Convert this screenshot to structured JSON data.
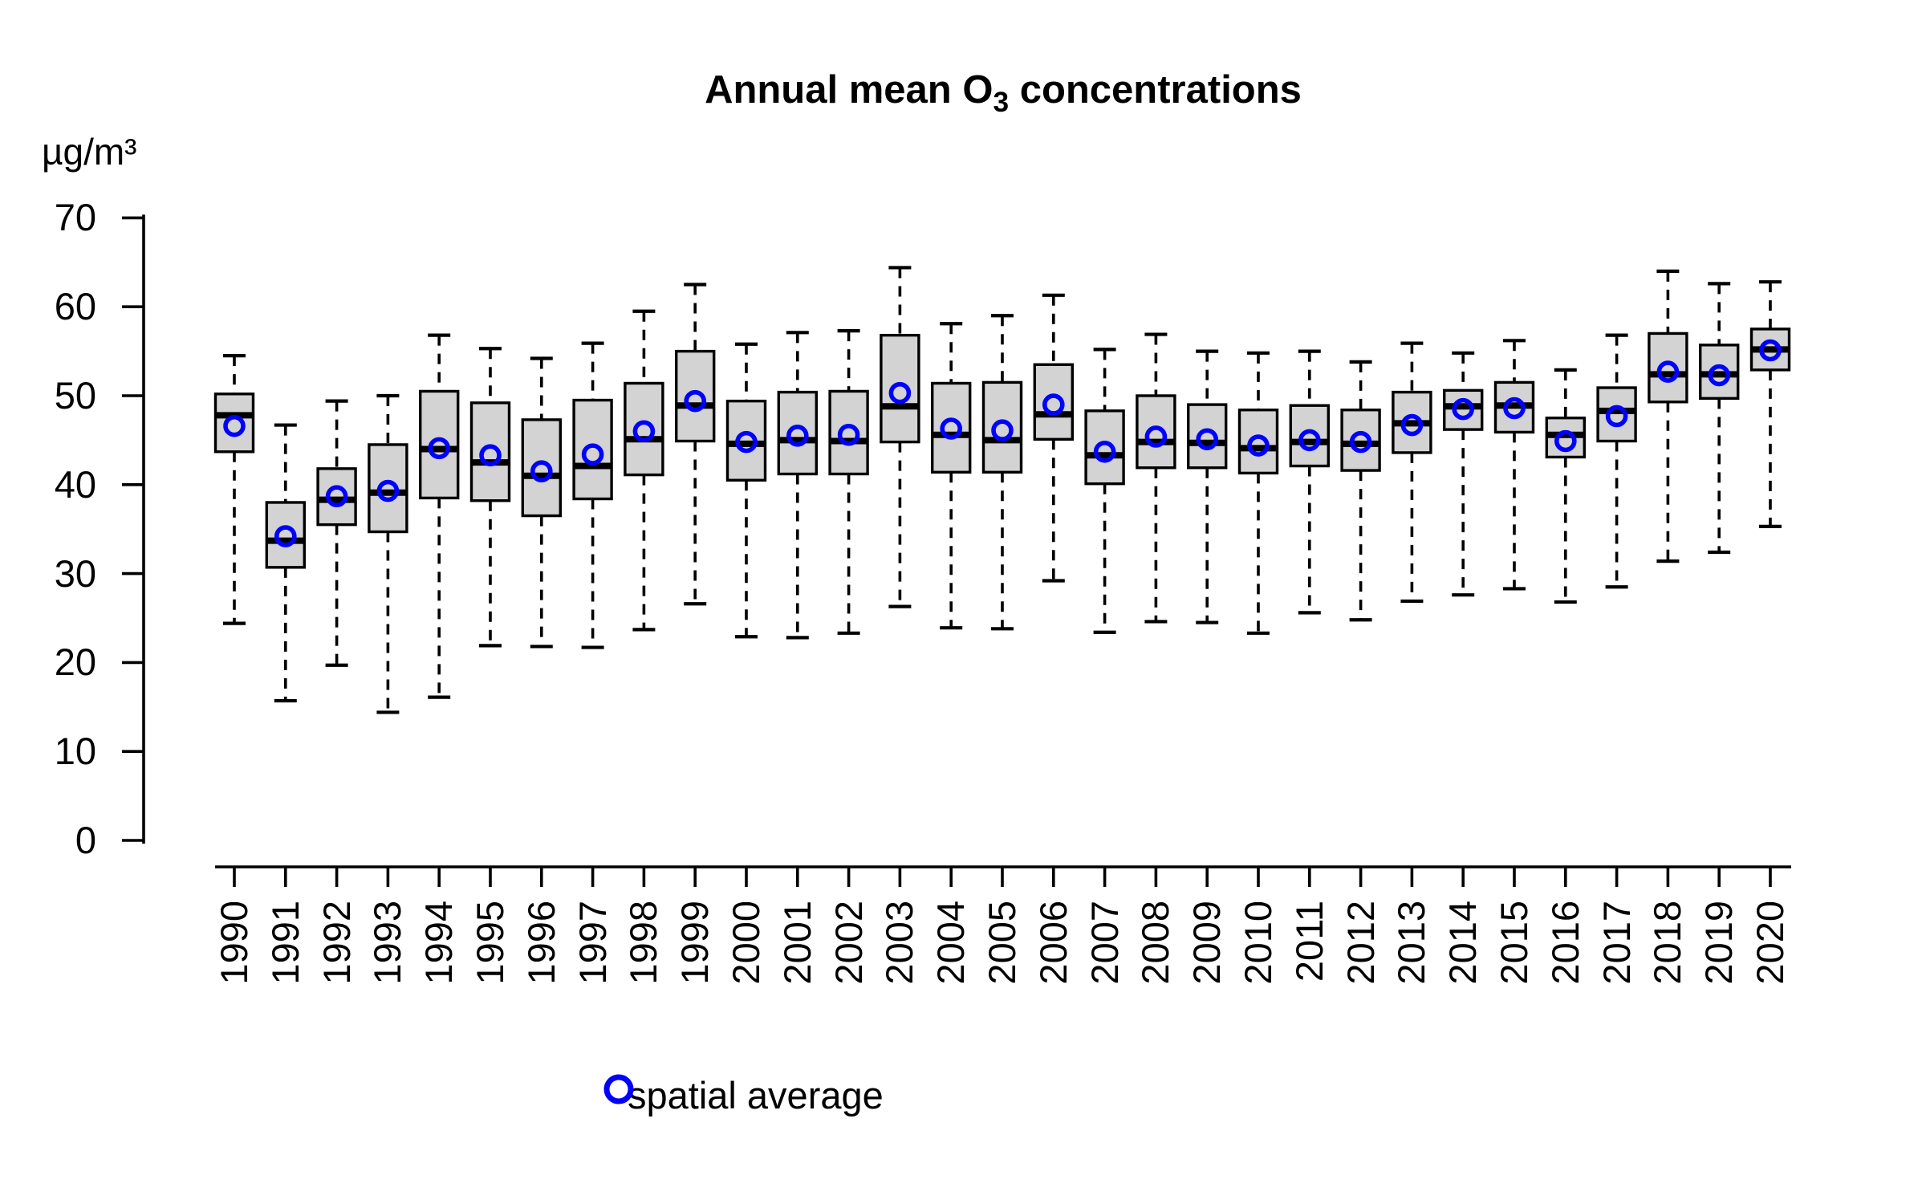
{
  "title": {
    "prefix": "Annual mean O",
    "subscript": "3",
    "suffix": " concentrations"
  },
  "y_axis": {
    "unit": "µg/m³",
    "min": 0,
    "max": 70
  },
  "legend": {
    "label": "spatial average"
  },
  "colors": {
    "background": "#ffffff",
    "box_fill": "#d3d3d3",
    "box_border": "#000000",
    "median_line": "#000000",
    "whisker": "#000000",
    "axis": "#000000",
    "text": "#000000",
    "spatial_average_marker": "#0000ff"
  },
  "chart_data": {
    "type": "boxplot",
    "title": "Annual mean O3 concentrations",
    "ylabel": "µg/m³",
    "ylim": [
      0,
      70
    ],
    "y_ticks": [
      0,
      10,
      20,
      30,
      40,
      50,
      60,
      70
    ],
    "grid": false,
    "legend_entries": [
      "spatial average"
    ],
    "legend_position": "bottom",
    "categories": [
      "1990",
      "1991",
      "1992",
      "1993",
      "1994",
      "1995",
      "1996",
      "1997",
      "1998",
      "1999",
      "2000",
      "2001",
      "2002",
      "2003",
      "2004",
      "2005",
      "2006",
      "2007",
      "2008",
      "2009",
      "2010",
      "2011",
      "2012",
      "2013",
      "2014",
      "2015",
      "2016",
      "2017",
      "2018",
      "2019",
      "2020"
    ],
    "series": [
      {
        "year": "1990",
        "whisker_low": 24.4,
        "q1": 43.7,
        "median": 47.8,
        "q3": 50.2,
        "whisker_high": 54.5,
        "spatial_average": 46.6
      },
      {
        "year": "1991",
        "whisker_low": 15.7,
        "q1": 30.7,
        "median": 33.7,
        "q3": 38.0,
        "whisker_high": 46.7,
        "spatial_average": 34.2
      },
      {
        "year": "1992",
        "whisker_low": 19.7,
        "q1": 35.5,
        "median": 38.3,
        "q3": 41.8,
        "whisker_high": 49.4,
        "spatial_average": 38.7
      },
      {
        "year": "1993",
        "whisker_low": 14.4,
        "q1": 34.7,
        "median": 39.1,
        "q3": 44.5,
        "whisker_high": 50.0,
        "spatial_average": 39.3
      },
      {
        "year": "1994",
        "whisker_low": 16.1,
        "q1": 38.5,
        "median": 44.0,
        "q3": 50.5,
        "whisker_high": 56.8,
        "spatial_average": 44.1
      },
      {
        "year": "1995",
        "whisker_low": 21.9,
        "q1": 38.2,
        "median": 42.5,
        "q3": 49.2,
        "whisker_high": 55.3,
        "spatial_average": 43.3
      },
      {
        "year": "1996",
        "whisker_low": 21.8,
        "q1": 36.5,
        "median": 41.0,
        "q3": 47.3,
        "whisker_high": 54.2,
        "spatial_average": 41.5
      },
      {
        "year": "1997",
        "whisker_low": 21.7,
        "q1": 38.4,
        "median": 42.1,
        "q3": 49.5,
        "whisker_high": 55.9,
        "spatial_average": 43.4
      },
      {
        "year": "1998",
        "whisker_low": 23.7,
        "q1": 41.1,
        "median": 45.1,
        "q3": 51.4,
        "whisker_high": 59.5,
        "spatial_average": 46.0
      },
      {
        "year": "1999",
        "whisker_low": 26.6,
        "q1": 44.9,
        "median": 48.9,
        "q3": 55.0,
        "whisker_high": 62.5,
        "spatial_average": 49.4
      },
      {
        "year": "2000",
        "whisker_low": 22.9,
        "q1": 40.5,
        "median": 44.6,
        "q3": 49.4,
        "whisker_high": 55.8,
        "spatial_average": 44.8
      },
      {
        "year": "2001",
        "whisker_low": 22.8,
        "q1": 41.2,
        "median": 45.0,
        "q3": 50.4,
        "whisker_high": 57.1,
        "spatial_average": 45.5
      },
      {
        "year": "2002",
        "whisker_low": 23.3,
        "q1": 41.2,
        "median": 44.9,
        "q3": 50.5,
        "whisker_high": 57.3,
        "spatial_average": 45.6
      },
      {
        "year": "2003",
        "whisker_low": 26.3,
        "q1": 44.8,
        "median": 48.8,
        "q3": 56.8,
        "whisker_high": 64.4,
        "spatial_average": 50.3
      },
      {
        "year": "2004",
        "whisker_low": 23.9,
        "q1": 41.4,
        "median": 45.6,
        "q3": 51.4,
        "whisker_high": 58.1,
        "spatial_average": 46.3
      },
      {
        "year": "2005",
        "whisker_low": 23.8,
        "q1": 41.4,
        "median": 45.0,
        "q3": 51.5,
        "whisker_high": 59.0,
        "spatial_average": 46.1
      },
      {
        "year": "2006",
        "whisker_low": 29.2,
        "q1": 45.1,
        "median": 47.9,
        "q3": 53.5,
        "whisker_high": 61.3,
        "spatial_average": 49.0
      },
      {
        "year": "2007",
        "whisker_low": 23.4,
        "q1": 40.1,
        "median": 43.3,
        "q3": 48.3,
        "whisker_high": 55.2,
        "spatial_average": 43.7
      },
      {
        "year": "2008",
        "whisker_low": 24.6,
        "q1": 41.9,
        "median": 44.8,
        "q3": 50.0,
        "whisker_high": 56.9,
        "spatial_average": 45.4
      },
      {
        "year": "2009",
        "whisker_low": 24.5,
        "q1": 41.9,
        "median": 44.7,
        "q3": 49.0,
        "whisker_high": 55.0,
        "spatial_average": 45.1
      },
      {
        "year": "2010",
        "whisker_low": 23.3,
        "q1": 41.3,
        "median": 44.1,
        "q3": 48.4,
        "whisker_high": 54.8,
        "spatial_average": 44.4
      },
      {
        "year": "2011",
        "whisker_low": 25.6,
        "q1": 42.1,
        "median": 44.8,
        "q3": 48.9,
        "whisker_high": 55.0,
        "spatial_average": 45.0
      },
      {
        "year": "2012",
        "whisker_low": 24.8,
        "q1": 41.6,
        "median": 44.6,
        "q3": 48.4,
        "whisker_high": 53.8,
        "spatial_average": 44.8
      },
      {
        "year": "2013",
        "whisker_low": 26.9,
        "q1": 43.6,
        "median": 46.9,
        "q3": 50.4,
        "whisker_high": 55.9,
        "spatial_average": 46.7
      },
      {
        "year": "2014",
        "whisker_low": 27.6,
        "q1": 46.2,
        "median": 48.8,
        "q3": 50.6,
        "whisker_high": 54.8,
        "spatial_average": 48.5
      },
      {
        "year": "2015",
        "whisker_low": 28.3,
        "q1": 45.9,
        "median": 48.9,
        "q3": 51.5,
        "whisker_high": 56.2,
        "spatial_average": 48.6
      },
      {
        "year": "2016",
        "whisker_low": 26.8,
        "q1": 43.1,
        "median": 45.6,
        "q3": 47.5,
        "whisker_high": 52.9,
        "spatial_average": 44.9
      },
      {
        "year": "2017",
        "whisker_low": 28.5,
        "q1": 44.9,
        "median": 48.3,
        "q3": 50.9,
        "whisker_high": 56.8,
        "spatial_average": 47.7
      },
      {
        "year": "2018",
        "whisker_low": 31.4,
        "q1": 49.3,
        "median": 52.4,
        "q3": 57.0,
        "whisker_high": 64.0,
        "spatial_average": 52.7
      },
      {
        "year": "2019",
        "whisker_low": 32.4,
        "q1": 49.7,
        "median": 52.4,
        "q3": 55.7,
        "whisker_high": 62.6,
        "spatial_average": 52.3
      },
      {
        "year": "2020",
        "whisker_low": 35.3,
        "q1": 52.9,
        "median": 55.2,
        "q3": 57.5,
        "whisker_high": 62.8,
        "spatial_average": 55.1
      }
    ]
  }
}
